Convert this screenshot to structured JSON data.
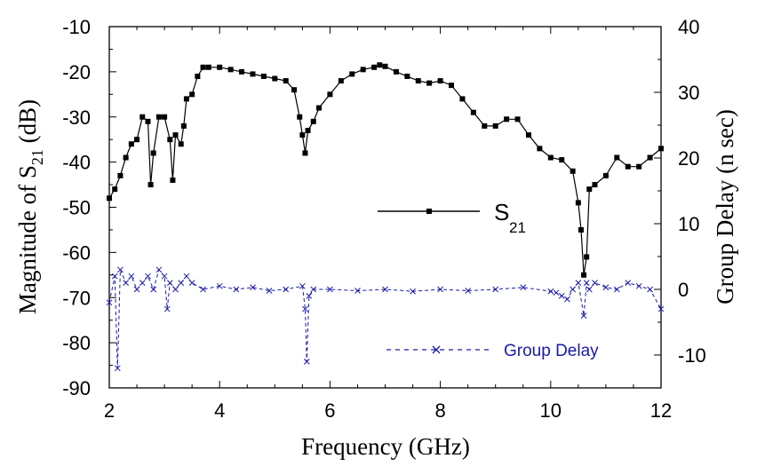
{
  "colors": {
    "s21": "#000000",
    "group_delay": "#1a1aa6"
  },
  "chart_data": {
    "type": "line",
    "title": "",
    "xlabel": "Frequency (GHz)",
    "ylabel_left": "Magnitude of S",
    "ylabel_left_sub": "21",
    "ylabel_left_suffix": " (dB)",
    "ylabel_right": "Group Delay (n sec)",
    "xlim": [
      2,
      12
    ],
    "ylim_left": [
      -90,
      -10
    ],
    "ylim_right": [
      -15,
      40
    ],
    "x_ticks": [
      2,
      4,
      6,
      8,
      10,
      12
    ],
    "x_tick_labels": [
      "2",
      "4",
      "6",
      "8",
      "10",
      "12"
    ],
    "y_left_ticks": [
      -10,
      -20,
      -30,
      -40,
      -50,
      -60,
      -70,
      -80,
      -90
    ],
    "y_left_tick_labels": [
      "-10",
      "-20",
      "-30",
      "-40",
      "-50",
      "-60",
      "-70",
      "-80",
      "-90"
    ],
    "y_right_ticks": [
      40,
      30,
      20,
      10,
      0,
      -10
    ],
    "y_right_tick_labels": [
      "40",
      "30",
      "20",
      "10",
      "0",
      "-10"
    ],
    "grid": false,
    "legend_position": "center-right",
    "series": [
      {
        "name": "S",
        "name_sub": "21",
        "axis": "left",
        "style": "solid line with square markers",
        "x": [
          2.0,
          2.1,
          2.2,
          2.3,
          2.4,
          2.5,
          2.6,
          2.7,
          2.75,
          2.8,
          2.9,
          3.0,
          3.1,
          3.15,
          3.2,
          3.3,
          3.35,
          3.4,
          3.5,
          3.6,
          3.7,
          3.8,
          4.0,
          4.2,
          4.4,
          4.6,
          4.8,
          5.0,
          5.2,
          5.35,
          5.45,
          5.5,
          5.55,
          5.6,
          5.7,
          5.8,
          6.0,
          6.2,
          6.4,
          6.6,
          6.8,
          6.9,
          7.0,
          7.2,
          7.4,
          7.6,
          7.8,
          8.0,
          8.2,
          8.4,
          8.6,
          8.8,
          9.0,
          9.2,
          9.4,
          9.6,
          9.8,
          10.0,
          10.2,
          10.4,
          10.5,
          10.55,
          10.6,
          10.65,
          10.7,
          10.8,
          11.0,
          11.2,
          11.4,
          11.6,
          11.8,
          12.0
        ],
        "y": [
          -48,
          -46,
          -43,
          -39,
          -36,
          -35,
          -30,
          -31,
          -45,
          -38,
          -30,
          -30,
          -35,
          -44,
          -34,
          -36,
          -32,
          -26,
          -25,
          -21,
          -19,
          -19,
          -19,
          -19.5,
          -20,
          -20.5,
          -21,
          -21.5,
          -22,
          -24,
          -30,
          -34,
          -38,
          -33,
          -31,
          -28,
          -25,
          -22,
          -20.5,
          -19.5,
          -19,
          -18.5,
          -18.8,
          -20,
          -21,
          -22,
          -22.5,
          -22,
          -23,
          -26,
          -29,
          -32,
          -32,
          -30.5,
          -30.5,
          -34,
          -37,
          -39,
          -39.5,
          -42,
          -49,
          -55,
          -65,
          -61,
          -46,
          -45,
          -43,
          -39,
          -41,
          -41,
          -39,
          -37
        ]
      },
      {
        "name": "Group Delay",
        "axis": "right",
        "style": "dashed line with x markers",
        "x": [
          2.0,
          2.1,
          2.15,
          2.2,
          2.3,
          2.4,
          2.5,
          2.6,
          2.7,
          2.8,
          2.9,
          3.0,
          3.05,
          3.1,
          3.2,
          3.3,
          3.4,
          3.5,
          3.7,
          4.0,
          4.3,
          4.6,
          4.9,
          5.2,
          5.5,
          5.55,
          5.58,
          5.62,
          5.7,
          6.0,
          6.5,
          7.0,
          7.5,
          8.0,
          8.5,
          9.0,
          9.5,
          10.0,
          10.1,
          10.2,
          10.3,
          10.4,
          10.5,
          10.6,
          10.65,
          10.7,
          10.8,
          11.0,
          11.2,
          11.4,
          11.6,
          11.8,
          12.0
        ],
        "y": [
          -2,
          2,
          -12,
          3,
          1,
          2,
          0,
          1,
          2,
          0,
          3,
          2,
          -3,
          1,
          0,
          1,
          2,
          1,
          0,
          0.5,
          0,
          0.3,
          -0.2,
          0,
          0.5,
          -3,
          -11,
          -1,
          0,
          0,
          -0.2,
          0,
          -0.3,
          0,
          -0.2,
          0,
          0.3,
          -0.3,
          -0.5,
          -1,
          -1.5,
          0,
          1,
          -4,
          1,
          0,
          1,
          0.3,
          0,
          1,
          0.5,
          0,
          -3
        ]
      }
    ]
  }
}
